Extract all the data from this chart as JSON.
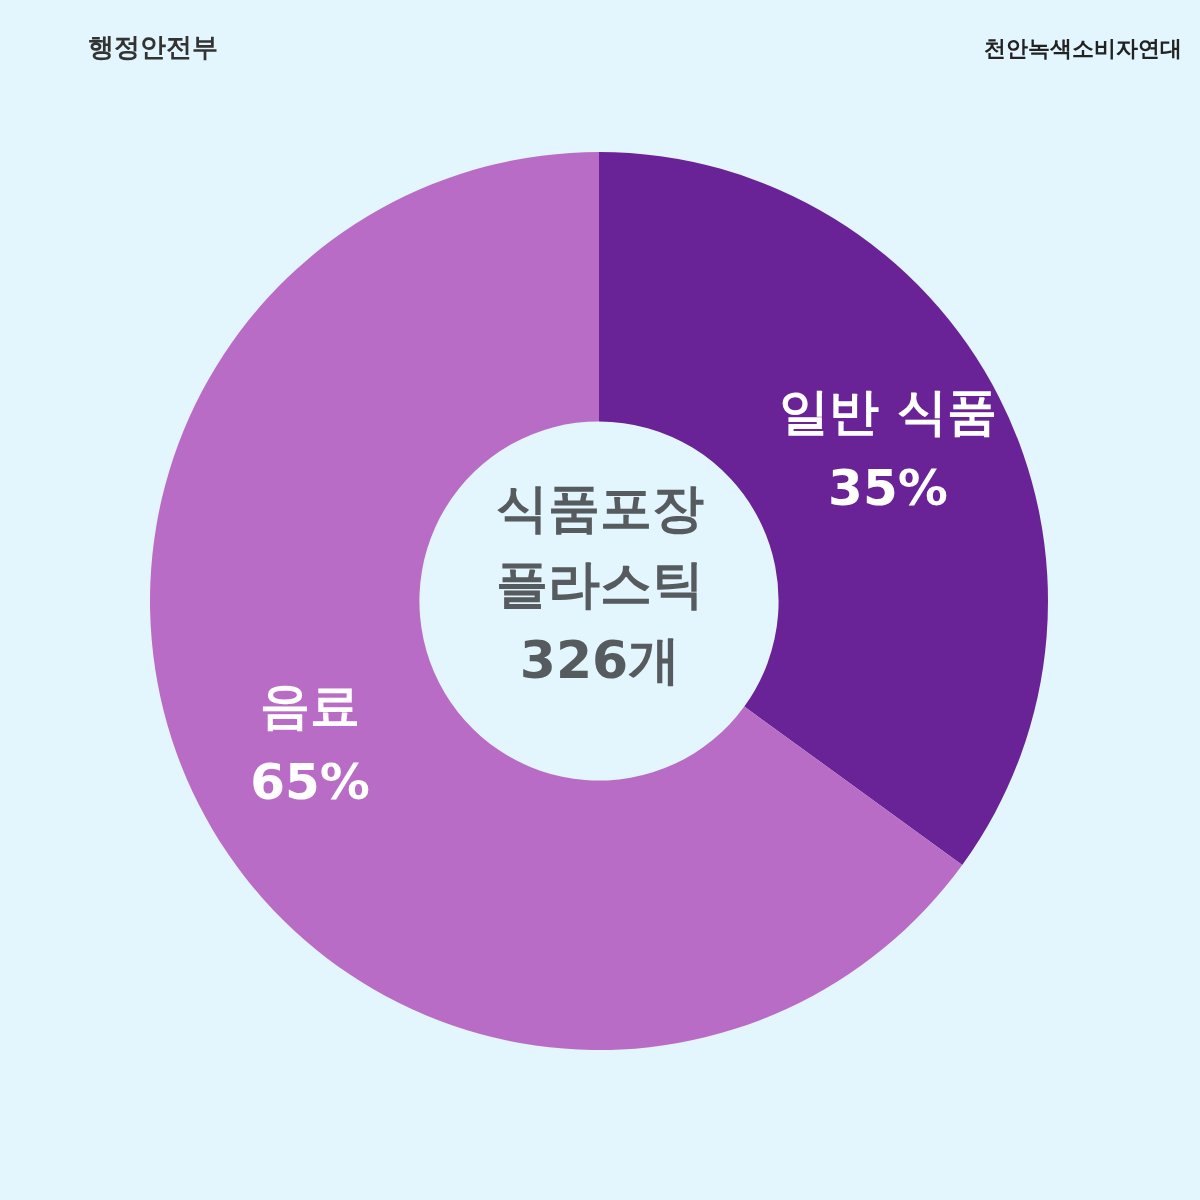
{
  "chart_data": {
    "type": "donut",
    "title": "식품포장 플라스틱 326개",
    "categories": [
      "일반 식품",
      "음료"
    ],
    "values": [
      35,
      65
    ],
    "value_labels": [
      "35%",
      "65%"
    ],
    "colors": [
      "#6a2396",
      "#b96cc5"
    ],
    "annotations": [
      "행정안전부",
      "천안녹색소비자연대"
    ],
    "legend": false
  }
}
